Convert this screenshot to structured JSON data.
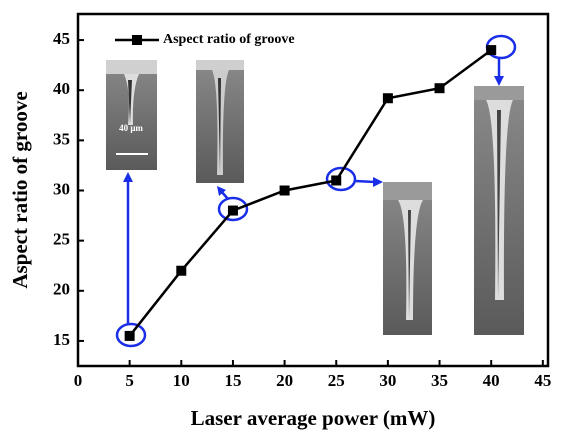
{
  "chart_data": {
    "type": "line",
    "x_label": "Laser average power (mW)",
    "y_label": "Aspect ratio of groove",
    "x": [
      5,
      10,
      15,
      20,
      25,
      30,
      35,
      40
    ],
    "series": [
      {
        "name": "Aspect ratio of groove",
        "color": "#000000",
        "values": [
          15.5,
          22,
          28,
          30,
          31,
          39.2,
          40.2,
          44
        ]
      }
    ],
    "xlim": [
      0,
      45.5
    ],
    "xticks": [
      0,
      5,
      10,
      15,
      20,
      25,
      30,
      35,
      40,
      45
    ],
    "ylim": [
      12.5,
      47.6
    ],
    "yticks": [
      15,
      20,
      25,
      30,
      35,
      40,
      45
    ],
    "legend": "upper left",
    "annotations": [
      "40 μm"
    ]
  }
}
